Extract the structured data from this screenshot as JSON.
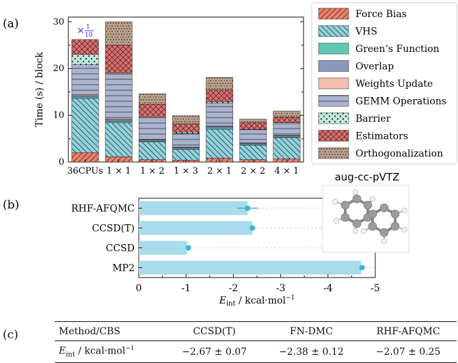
{
  "panel_labels": {
    "a": "(a)",
    "b": "(b)",
    "c": "(c)"
  },
  "annotation_scale": {
    "prefix": "×",
    "num": "1",
    "den": "10",
    "color": "#2f2cf0"
  },
  "chart_data": [
    {
      "type": "bar",
      "stacked": true,
      "ylabel": "Time (s) / block",
      "ylim": [
        0,
        31
      ],
      "yticks": [
        0,
        10,
        20,
        30
      ],
      "categories": [
        "36CPUs",
        "1 × 1",
        "1 × 2",
        "1 × 3",
        "2 × 1",
        "2 × 2",
        "4 × 1"
      ],
      "grid": false,
      "legend_placement": "right",
      "series": [
        {
          "name": "Force Bias",
          "color": "#f07f6a",
          "hatch": "diag-right",
          "values": [
            2.0,
            1.1,
            0.5,
            0.4,
            0.8,
            0.5,
            0.7
          ]
        },
        {
          "name": "VHS",
          "color": "#8fd3e0",
          "hatch": "diag-left",
          "values": [
            11.6,
            7.3,
            3.8,
            2.3,
            6.2,
            3.1,
            4.5
          ]
        },
        {
          "name": "Green’s Function",
          "color": "#62c8b4",
          "hatch": "none",
          "values": [
            0.3,
            0.3,
            0.2,
            0.2,
            0.3,
            0.2,
            0.2
          ]
        },
        {
          "name": "Overlap",
          "color": "#8b98bd",
          "hatch": "none",
          "values": [
            0.3,
            0.3,
            0.2,
            0.2,
            0.3,
            0.2,
            0.2
          ]
        },
        {
          "name": "Weights Update",
          "color": "#f4bfae",
          "hatch": "none",
          "values": [
            0.2,
            0.2,
            0.1,
            0.1,
            0.1,
            0.1,
            0.1
          ]
        },
        {
          "name": "GEMM Operations",
          "color": "#aab3cf",
          "hatch": "horizontal",
          "values": [
            6.4,
            9.6,
            4.6,
            2.9,
            4.9,
            2.8,
            2.5
          ]
        },
        {
          "name": "Barrier",
          "color": "#bfe6dc",
          "hatch": "dots",
          "values": [
            2.2,
            0.2,
            0.2,
            0.3,
            0.3,
            0.1,
            0.2
          ]
        },
        {
          "name": "Estimators",
          "color": "#e86b6b",
          "hatch": "cross",
          "values": [
            3.2,
            6.0,
            2.8,
            1.8,
            2.5,
            1.4,
            1.2
          ]
        },
        {
          "name": "Orthogonalization",
          "color": "#bba08c",
          "hatch": "dense-dots",
          "values": [
            0,
            5.0,
            2.2,
            1.7,
            2.7,
            0.8,
            1.3
          ]
        }
      ]
    },
    {
      "type": "bar",
      "orientation": "horizontal",
      "title": "aug-cc-pVTZ",
      "xlabel": "E_int / kcal·mol⁻¹",
      "xlabel_main": "E",
      "xlabel_sub": "int",
      "xlabel_unit": " / kcal·mol",
      "xlabel_exp": "−1",
      "xlim": [
        0,
        -5
      ],
      "xticks": [
        0,
        -1,
        -2,
        -3,
        -4,
        -5
      ],
      "xtick_labels": [
        "0",
        "-1",
        "-2",
        "-3",
        "-4",
        "-5"
      ],
      "categories": [
        "RHF-AFQMC",
        "CCSD(T)",
        "CCSD",
        "MP2"
      ],
      "values": [
        -2.3,
        -2.4,
        -1.02,
        -4.7
      ],
      "point_values": [
        -2.3,
        -2.4,
        -1.05,
        -4.72
      ],
      "errors": [
        0.22,
        0.0,
        0.0,
        0.0
      ],
      "bar_color": "#a9dcea",
      "point_color": "#3bb5d4"
    }
  ],
  "table": {
    "headers": [
      "Method/CBS",
      "CCSD(T)",
      "FN-DMC",
      "RHF-AFQMC"
    ],
    "row_label_main": "E",
    "row_label_sub": "int",
    "row_label_unit": " / kcal·mol",
    "row_label_exp": "−1",
    "values": [
      "−2.67 ± 0.07",
      "−2.38 ± 0.12",
      "−2.07 ± 0.25"
    ]
  }
}
